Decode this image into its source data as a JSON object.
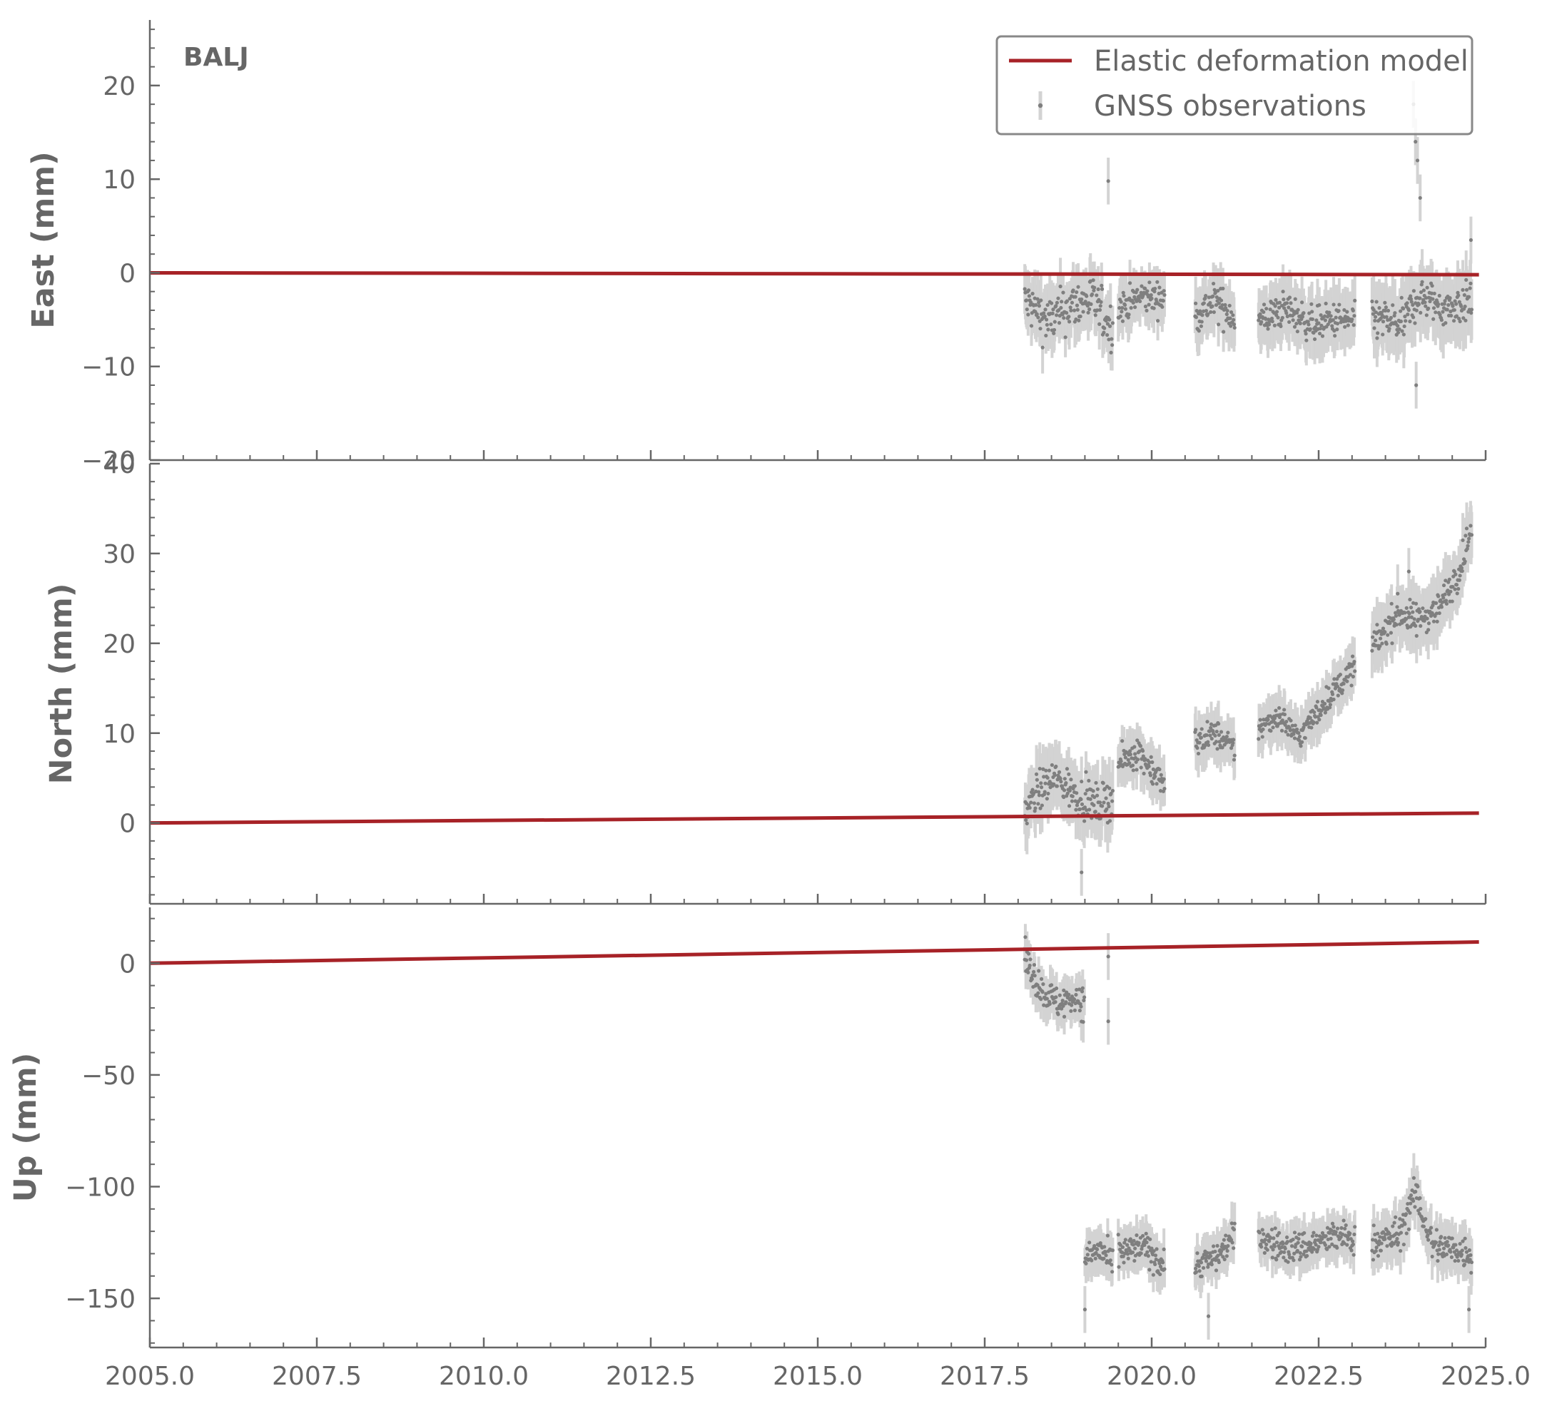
{
  "chart_data": {
    "type": "scatter",
    "station": "BALJ",
    "x_range": [
      2005.0,
      2025.0
    ],
    "x_ticks": [
      "2005.0",
      "2007.5",
      "2010.0",
      "2012.5",
      "2015.0",
      "2017.5",
      "2020.0",
      "2022.5",
      "2025.0"
    ],
    "legend": {
      "placement": "top-right",
      "entries": [
        {
          "name": "Elastic deformation model",
          "color": "#a72227",
          "style": "line"
        },
        {
          "name": "GNSS observations",
          "color": "#7f7f7f",
          "style": "errorbar-point"
        }
      ]
    },
    "colors": {
      "model": "#a72227",
      "observations": "#7f7f7f",
      "errorbars": "#d3d3d3",
      "axis": "#666666"
    },
    "panels": [
      {
        "ylabel": "East (mm)",
        "ylim": [
          -20,
          27
        ],
        "y_ticks": [
          "−20",
          "−10",
          "0",
          "10",
          "20"
        ],
        "y_tick_values": [
          -20,
          -10,
          0,
          10,
          20
        ],
        "model_line": {
          "x": [
            2005.0,
            2024.9
          ],
          "y": [
            0.0,
            -0.2
          ]
        },
        "observations": {
          "segments": [
            {
              "t0": 2018.1,
              "t1": 2019.42,
              "levels": [
                [
                  2018.1,
                  -3.0
                ],
                [
                  2018.45,
                  -5.2
                ],
                [
                  2018.8,
                  -3.5
                ],
                [
                  2019.1,
                  -2.8
                ],
                [
                  2019.42,
                  -6.0
                ]
              ],
              "noise": 1.8,
              "err": 2.2
            },
            {
              "t0": 2019.5,
              "t1": 2020.2,
              "levels": [
                [
                  2019.5,
                  -3.8
                ],
                [
                  2019.85,
                  -2.5
                ],
                [
                  2020.2,
                  -2.8
                ]
              ],
              "noise": 1.2,
              "err": 2.0
            },
            {
              "t0": 2020.65,
              "t1": 2021.25,
              "levels": [
                [
                  2020.65,
                  -4.5
                ],
                [
                  2020.95,
                  -3.0
                ],
                [
                  2021.25,
                  -4.8
                ]
              ],
              "noise": 1.4,
              "err": 2.2
            },
            {
              "t0": 2021.6,
              "t1": 2023.05,
              "levels": [
                [
                  2021.6,
                  -5.2
                ],
                [
                  2022.0,
                  -3.8
                ],
                [
                  2022.4,
                  -5.5
                ],
                [
                  2022.8,
                  -5.0
                ],
                [
                  2023.05,
                  -5.2
                ]
              ],
              "noise": 1.3,
              "err": 2.3
            },
            {
              "t0": 2023.3,
              "t1": 2024.8,
              "levels": [
                [
                  2023.3,
                  -4.8
                ],
                [
                  2023.75,
                  -5.5
                ],
                [
                  2024.0,
                  -2.5
                ],
                [
                  2024.4,
                  -3.8
                ],
                [
                  2024.8,
                  -3.0
                ]
              ],
              "noise": 1.5,
              "err": 2.6
            }
          ],
          "outliers": [
            [
              2019.35,
              9.8
            ],
            [
              2023.92,
              18.0
            ],
            [
              2023.95,
              14.0
            ],
            [
              2023.98,
              12.0
            ],
            [
              2024.02,
              8.0
            ],
            [
              2023.96,
              -12.0
            ],
            [
              2024.78,
              3.5
            ]
          ]
        }
      },
      {
        "ylabel": "North (mm)",
        "ylim": [
          -9,
          40
        ],
        "y_ticks": [
          "0",
          "10",
          "20",
          "30",
          "40"
        ],
        "y_tick_values": [
          0,
          10,
          20,
          30,
          40
        ],
        "model_line": {
          "x": [
            2005.0,
            2024.9
          ],
          "y": [
            0.0,
            1.1
          ]
        },
        "observations": {
          "segments": [
            {
              "t0": 2018.1,
              "t1": 2019.42,
              "levels": [
                [
                  2018.1,
                  1.0
                ],
                [
                  2018.3,
                  3.5
                ],
                [
                  2018.55,
                  5.0
                ],
                [
                  2018.9,
                  3.0
                ],
                [
                  2019.2,
                  2.0
                ],
                [
                  2019.42,
                  3.0
                ]
              ],
              "noise": 1.5,
              "err": 2.5
            },
            {
              "t0": 2019.5,
              "t1": 2020.2,
              "levels": [
                [
                  2019.5,
                  6.5
                ],
                [
                  2019.8,
                  8.0
                ],
                [
                  2020.2,
                  4.0
                ]
              ],
              "noise": 1.2,
              "err": 2.0
            },
            {
              "t0": 2020.65,
              "t1": 2021.25,
              "levels": [
                [
                  2020.65,
                  9.0
                ],
                [
                  2020.95,
                  10.0
                ],
                [
                  2021.25,
                  8.0
                ]
              ],
              "noise": 1.1,
              "err": 2.0
            },
            {
              "t0": 2021.6,
              "t1": 2023.05,
              "levels": [
                [
                  2021.6,
                  10.5
                ],
                [
                  2021.9,
                  12.0
                ],
                [
                  2022.2,
                  9.5
                ],
                [
                  2022.6,
                  13.5
                ],
                [
                  2023.05,
                  17.5
                ]
              ],
              "noise": 1.0,
              "err": 2.0
            },
            {
              "t0": 2023.3,
              "t1": 2024.8,
              "levels": [
                [
                  2023.3,
                  19.5
                ],
                [
                  2023.7,
                  23.5
                ],
                [
                  2023.95,
                  22.5
                ],
                [
                  2024.3,
                  24.0
                ],
                [
                  2024.6,
                  28.0
                ],
                [
                  2024.8,
                  33.0
                ]
              ],
              "noise": 1.3,
              "err": 2.4
            }
          ],
          "outliers": [
            [
              2018.95,
              -5.5
            ],
            [
              2023.85,
              28.0
            ]
          ]
        }
      },
      {
        "ylabel": "Up (mm)",
        "ylim": [
          -172,
          25
        ],
        "y_ticks": [
          "0",
          "−50",
          "−100",
          "−150"
        ],
        "y_tick_values": [
          0,
          -50,
          -100,
          -150
        ],
        "model_line": {
          "x": [
            2005.0,
            2024.9
          ],
          "y": [
            0.0,
            9.5
          ]
        },
        "observations": {
          "segments": [
            {
              "t0": 2018.1,
              "t1": 2019.0,
              "levels": [
                [
                  2018.1,
                  2.0
                ],
                [
                  2018.35,
                  -12.0
                ],
                [
                  2018.6,
                  -18.0
                ],
                [
                  2018.9,
                  -15.0
                ],
                [
                  2019.0,
                  -20.0
                ]
              ],
              "noise": 5.0,
              "err": 7.0
            },
            {
              "t0": 2019.0,
              "t1": 2019.42,
              "levels": [
                [
                  2019.0,
                  -132.0
                ],
                [
                  2019.2,
                  -128.0
                ],
                [
                  2019.42,
                  -135.0
                ]
              ],
              "noise": 5.0,
              "err": 7.0
            },
            {
              "t0": 2019.5,
              "t1": 2020.2,
              "levels": [
                [
                  2019.5,
                  -130.0
                ],
                [
                  2019.9,
                  -127.0
                ],
                [
                  2020.2,
                  -136.0
                ]
              ],
              "noise": 5.0,
              "err": 7.0
            },
            {
              "t0": 2020.65,
              "t1": 2021.25,
              "levels": [
                [
                  2020.65,
                  -135.0
                ],
                [
                  2020.95,
                  -132.0
                ],
                [
                  2021.25,
                  -122.0
                ]
              ],
              "noise": 4.5,
              "err": 7.0
            },
            {
              "t0": 2021.6,
              "t1": 2023.05,
              "levels": [
                [
                  2021.6,
                  -122.0
                ],
                [
                  2022.0,
                  -128.0
                ],
                [
                  2022.4,
                  -126.0
                ],
                [
                  2022.8,
                  -122.0
                ],
                [
                  2023.05,
                  -124.0
                ]
              ],
              "noise": 5.0,
              "err": 7.0
            },
            {
              "t0": 2023.3,
              "t1": 2024.8,
              "levels": [
                [
                  2023.3,
                  -125.0
                ],
                [
                  2023.7,
                  -122.0
                ],
                [
                  2023.95,
                  -103.0
                ],
                [
                  2024.2,
                  -126.0
                ],
                [
                  2024.8,
                  -130.0
                ]
              ],
              "noise": 5.5,
              "err": 8.0
            }
          ],
          "outliers": [
            [
              2019.35,
              3.0
            ],
            [
              2019.35,
              -26.0
            ],
            [
              2019.0,
              -155.0
            ],
            [
              2020.85,
              -158.0
            ],
            [
              2024.75,
              -155.0
            ]
          ]
        }
      }
    ]
  }
}
